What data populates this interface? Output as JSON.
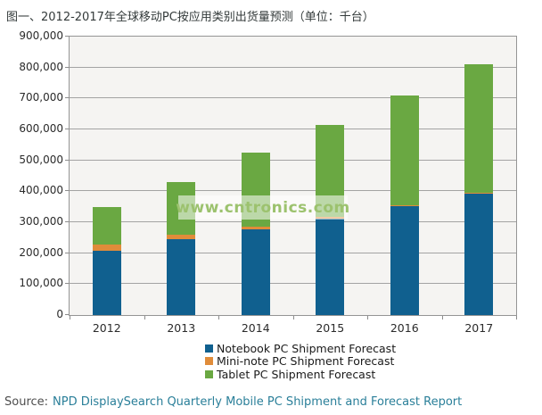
{
  "chart": {
    "title": "图一、2012-2017年全球移动PC按应用类别出货量预测（单位：千台）",
    "watermark": "www.cntronics.com",
    "source_prefix": "Source:",
    "source_link": "NPD DisplaySearch Quarterly Mobile PC Shipment and Forecast Report"
  },
  "chart_data": {
    "type": "bar",
    "stacked": true,
    "title": "图一、2012-2017年全球移动PC按应用类别出货量预测（单位：千台）",
    "xlabel": "",
    "ylabel": "",
    "units": "thousand units (千台)",
    "categories": [
      "2012",
      "2013",
      "2014",
      "2015",
      "2016",
      "2017"
    ],
    "series": [
      {
        "name": "Notebook PC Shipment Forecast",
        "color": "#10608f",
        "values": [
          208000,
          245000,
          278000,
          311000,
          353000,
          393000
        ]
      },
      {
        "name": "Mini-note PC Shipment Forecast",
        "color": "#e08c3a",
        "values": [
          21000,
          14000,
          8000,
          5000,
          2000,
          1000
        ]
      },
      {
        "name": "Tablet PC Shipment Forecast",
        "color": "#6aa842",
        "values": [
          121000,
          171000,
          240000,
          298000,
          356000,
          416000
        ]
      }
    ],
    "ylim": [
      0,
      900000
    ],
    "ytick_interval": 100000,
    "ytick_labels": [
      "0",
      "100,000",
      "200,000",
      "300,000",
      "400,000",
      "500,000",
      "600,000",
      "700,000",
      "800,000",
      "900,000"
    ],
    "grid": true,
    "legend_position": "bottom",
    "gridline_color": "#a3a3a3",
    "plot_background": "#f5f4f2"
  }
}
